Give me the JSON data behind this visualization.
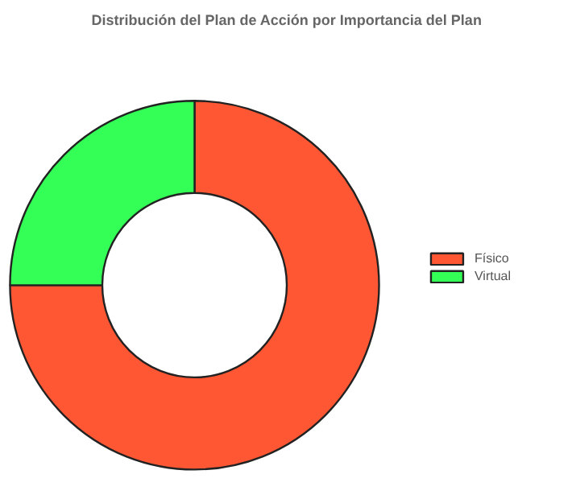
{
  "chart_data": {
    "type": "donut",
    "title": "Distribución del Plan de Acción por Importancia del Plan",
    "categories": [
      "Físico",
      "Virtual"
    ],
    "values": [
      75,
      25
    ],
    "colors": [
      "#ff5733",
      "#33ff57"
    ],
    "legend": "right"
  }
}
